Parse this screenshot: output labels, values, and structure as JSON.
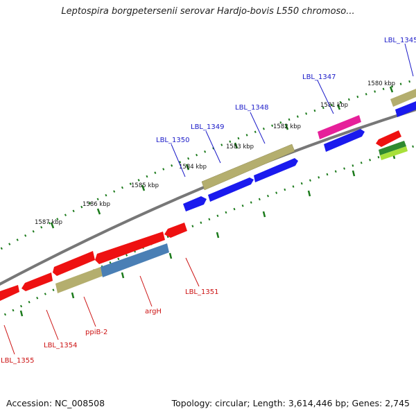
{
  "title": "Leptospira borgpetersenii serovar Hardjo-bovis L550 chromoso...",
  "footer": {
    "accession": "Accession: NC_008508",
    "summary": "Topology: circular; Length: 3,614,446 bp; Genes: 2,745"
  },
  "colors": {
    "backbone": "#777777",
    "tick": "#1b7a1b",
    "forward_label": "#1a1ac8",
    "reverse_label": "#cc1111",
    "red_feature": "#ee1111",
    "blue_feature": "#1a1aee",
    "khaki_feature": "#b4ae6e",
    "magenta_feature": "#e6209a",
    "steel_feature": "#4a7fb5",
    "green_feature": "#2f8a2f",
    "lime_feature": "#a8e03a"
  },
  "scale_labels": [
    "1580 kbp",
    "1581 kbp",
    "1582 kbp",
    "1583 kbp",
    "1584 kbp",
    "1585 kbp",
    "1586 kbp",
    "1587 kbp"
  ],
  "forward_genes": [
    "LBL_1345",
    "LBL_1347",
    "LBL_1348",
    "LBL_1349",
    "LBL_1350"
  ],
  "reverse_genes": [
    "LBL_1351",
    "argH",
    "ppiB-2",
    "LBL_1354",
    "LBL_1355"
  ]
}
